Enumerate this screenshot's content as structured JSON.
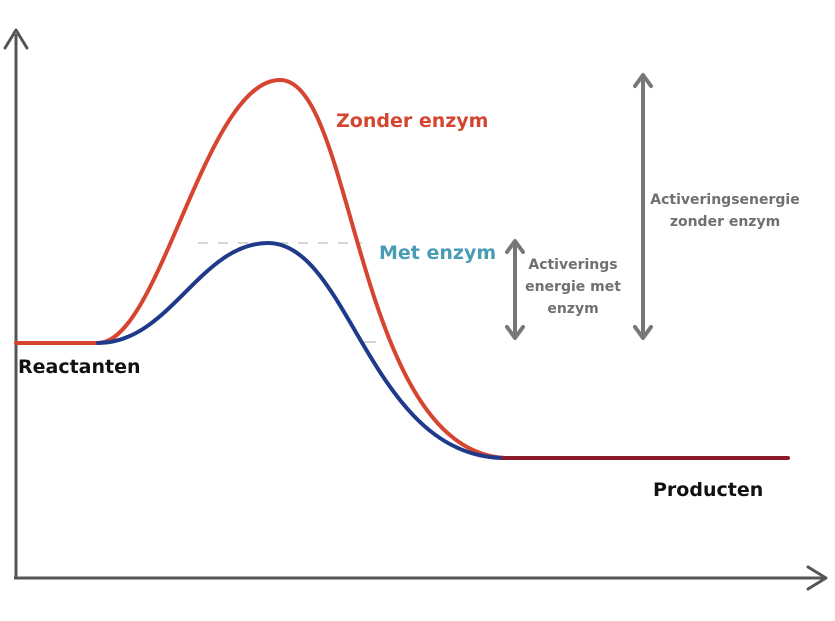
{
  "labels": {
    "without_enzyme": "Zonder enzym",
    "with_enzyme": "Met enzym",
    "reactants": "Reactanten",
    "products": "Producten",
    "activation_with_line1": "Activerings",
    "activation_with_line2": "energie met",
    "activation_with_line3": "enzym",
    "activation_without_line1": "Activeringsenergie",
    "activation_without_line2": "zonder enzym"
  },
  "colors": {
    "without_enzyme": "#d6452f",
    "with_enzyme": "#1f3a8a",
    "with_enzyme_label": "#4a9bb5",
    "products_line": "#8b1a2b",
    "axis": "#555555",
    "activation_arrow": "#777777",
    "guide_line": "#c8c8c8",
    "text_dark": "#111111",
    "text_grey": "#707070"
  }
}
